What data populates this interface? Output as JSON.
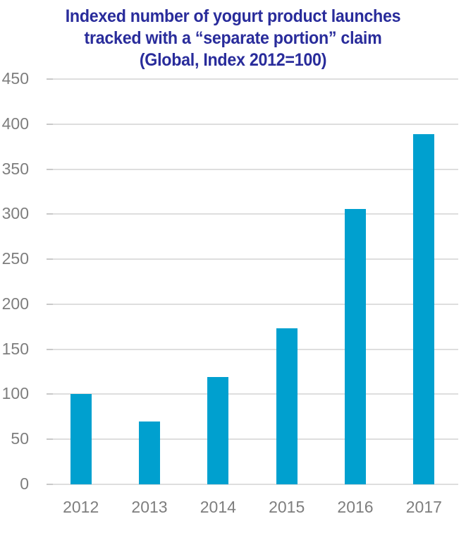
{
  "page": {
    "background_color": "#ffffff"
  },
  "chart_data": {
    "type": "bar",
    "title_lines": [
      "Indexed number of yogurt product launches",
      "tracked with a “separate portion” claim",
      "(Global, Index 2012=100)"
    ],
    "categories": [
      "2012",
      "2013",
      "2014",
      "2015",
      "2016",
      "2017"
    ],
    "values": [
      100,
      70,
      119,
      173,
      306,
      389
    ],
    "xlabel": "",
    "ylabel": "",
    "ylim": [
      0,
      450
    ],
    "yticks": [
      0,
      50,
      100,
      150,
      200,
      250,
      300,
      350,
      400,
      450
    ],
    "grid": "horizontal gridlines on, no vertical gridlines",
    "legend": "none",
    "colors": {
      "bar": "#00A0CF",
      "title": "#292C9B",
      "axis_labels": "#7E7E7E",
      "gridline": "#DEDEDE",
      "tick": "#C9C9C9"
    }
  }
}
